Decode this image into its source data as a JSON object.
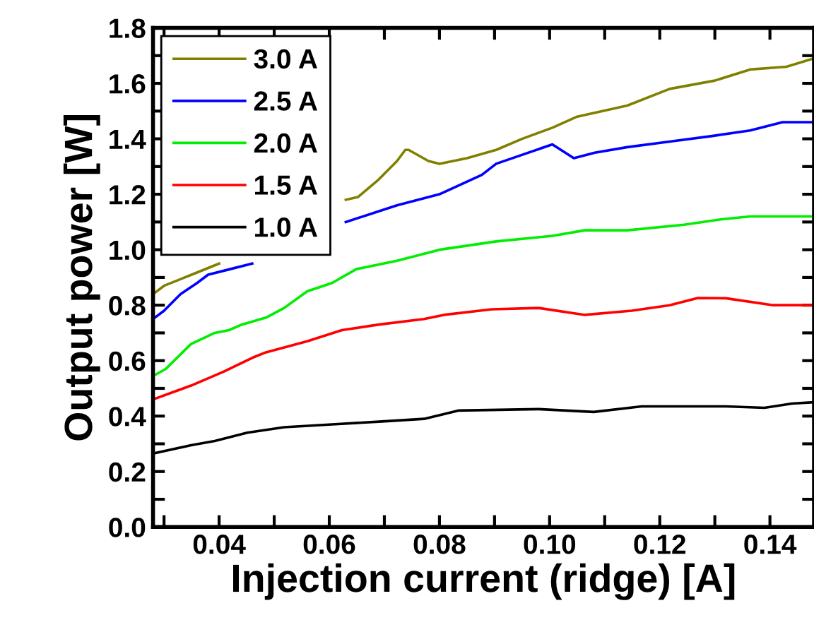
{
  "chart_data": {
    "type": "line",
    "xlabel": "Injection current (ridge) [A]",
    "ylabel": "Output power [W]",
    "xlim": [
      0.028,
      0.148
    ],
    "ylim": [
      0,
      1.8
    ],
    "xticks": [
      {
        "value": 0.03,
        "label": null
      },
      0.04,
      {
        "value": 0.05,
        "label": null
      },
      0.06,
      {
        "value": 0.07,
        "label": null
      },
      0.08,
      {
        "value": 0.09,
        "label": null
      },
      {
        "value": 0.1,
        "label": "0.10"
      },
      {
        "value": 0.11,
        "label": null
      },
      0.12,
      {
        "value": 0.13,
        "label": null
      },
      0.14
    ],
    "yticks": [
      {
        "value": 0,
        "label": "0.0"
      },
      {
        "value": 0.1,
        "label": null
      },
      0.2,
      {
        "value": 0.3,
        "label": null
      },
      0.4,
      {
        "value": 0.5,
        "label": null
      },
      0.6,
      {
        "value": 0.7,
        "label": null
      },
      0.8,
      {
        "value": 0.9,
        "label": null
      },
      {
        "value": 1,
        "label": "1.0"
      },
      {
        "value": 1.1,
        "label": null
      },
      1.2,
      {
        "value": 1.3,
        "label": null
      },
      1.4,
      {
        "value": 1.5,
        "label": null
      },
      1.6,
      {
        "value": 1.7,
        "label": null
      },
      1.8
    ],
    "grid": false,
    "legend": "top left",
    "marker": "none",
    "line_style": "solid",
    "series": [
      {
        "name": "3.0 A",
        "color": "#808000",
        "x": [
          0.028,
          0.03,
          0.035,
          0.04,
          0.05,
          0.063,
          0.0652,
          0.0688,
          0.0723,
          0.0738,
          0.0744,
          0.078,
          0.08,
          0.085,
          0.0903,
          0.095,
          0.1005,
          0.105,
          0.1141,
          0.1218,
          0.13,
          0.1364,
          0.143,
          0.148
        ],
        "values": [
          0.84,
          0.87,
          0.91,
          0.95,
          null,
          1.18,
          1.19,
          1.25,
          1.32,
          1.36,
          1.36,
          1.32,
          1.31,
          1.33,
          1.36,
          1.4,
          1.44,
          1.48,
          1.52,
          1.58,
          1.61,
          1.65,
          1.66,
          1.69
        ]
      },
      {
        "name": "2.5 A",
        "color": "#0000ff",
        "x": [
          0.028,
          0.03,
          0.033,
          0.036,
          0.038,
          0.042,
          0.046,
          0.053,
          0.063,
          0.0723,
          0.08,
          0.0877,
          0.0903,
          0.1005,
          0.1044,
          0.1082,
          0.1141,
          0.1218,
          0.1295,
          0.1364,
          0.1423,
          0.148
        ],
        "values": [
          0.75,
          0.78,
          0.84,
          0.88,
          0.91,
          0.93,
          0.95,
          null,
          1.1,
          1.16,
          1.2,
          1.27,
          1.31,
          1.38,
          1.33,
          1.35,
          1.37,
          1.39,
          1.41,
          1.43,
          1.46,
          1.46
        ]
      },
      {
        "name": "2.0 A",
        "color": "#00ee00",
        "x": [
          0.0285,
          0.0303,
          0.0349,
          0.0392,
          0.0418,
          0.0441,
          0.0485,
          0.0518,
          0.056,
          0.0605,
          0.0649,
          0.0723,
          0.08,
          0.0903,
          0.1005,
          0.1064,
          0.1141,
          0.1244,
          0.1313,
          0.1364,
          0.148
        ],
        "values": [
          0.55,
          0.57,
          0.66,
          0.7,
          0.71,
          0.73,
          0.755,
          0.79,
          0.85,
          0.88,
          0.93,
          0.96,
          1.0,
          1.03,
          1.05,
          1.07,
          1.07,
          1.09,
          1.11,
          1.12,
          1.12
        ]
      },
      {
        "name": "1.5 A",
        "color": "#ff0000",
        "x": [
          0.028,
          0.0349,
          0.0408,
          0.046,
          0.0485,
          0.056,
          0.0623,
          0.069,
          0.0772,
          0.0808,
          0.0895,
          0.098,
          0.1064,
          0.1149,
          0.1218,
          0.1269,
          0.132,
          0.1406,
          0.148
        ],
        "values": [
          0.46,
          0.51,
          0.56,
          0.61,
          0.63,
          0.67,
          0.71,
          0.73,
          0.75,
          0.765,
          0.785,
          0.79,
          0.765,
          0.78,
          0.8,
          0.826,
          0.825,
          0.8,
          0.8
        ]
      },
      {
        "name": "1.0 A",
        "color": "#000000",
        "x": [
          0.028,
          0.0349,
          0.0392,
          0.0451,
          0.0518,
          0.0605,
          0.069,
          0.0772,
          0.0834,
          0.098,
          0.108,
          0.1167,
          0.132,
          0.139,
          0.144,
          0.148
        ],
        "values": [
          0.265,
          0.295,
          0.31,
          0.34,
          0.36,
          0.37,
          0.38,
          0.39,
          0.42,
          0.425,
          0.415,
          0.435,
          0.435,
          0.43,
          0.445,
          0.45
        ]
      }
    ]
  }
}
